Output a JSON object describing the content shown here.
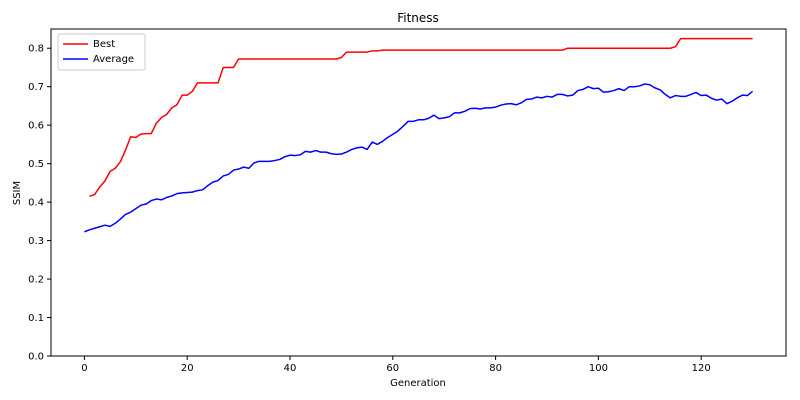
{
  "chart_data": {
    "type": "line",
    "title": "Fitness",
    "xlabel": "Generation",
    "ylabel": "SSIM",
    "xlim": [
      -6.5,
      136.5
    ],
    "ylim": [
      0.0,
      0.85
    ],
    "xticks": [
      0,
      20,
      40,
      60,
      80,
      100,
      120
    ],
    "yticks": [
      0.0,
      0.1,
      0.2,
      0.3,
      0.4,
      0.5,
      0.6,
      0.7,
      0.8
    ],
    "xtick_labels": [
      "0",
      "20",
      "40",
      "60",
      "80",
      "100",
      "120"
    ],
    "ytick_labels": [
      "0.0",
      "0.1",
      "0.2",
      "0.3",
      "0.4",
      "0.5",
      "0.6",
      "0.7",
      "0.8"
    ],
    "grid": false,
    "legend_position": "top-left",
    "series": [
      {
        "name": "Best",
        "color": "#ff0000",
        "points": [
          [
            1,
            0.415
          ],
          [
            2,
            0.42
          ],
          [
            3,
            0.44
          ],
          [
            4,
            0.455
          ],
          [
            5,
            0.48
          ],
          [
            6,
            0.488
          ],
          [
            7,
            0.505
          ],
          [
            8,
            0.535
          ],
          [
            9,
            0.57
          ],
          [
            10,
            0.568
          ],
          [
            11,
            0.577
          ],
          [
            12,
            0.578
          ],
          [
            13,
            0.578
          ],
          [
            14,
            0.605
          ],
          [
            15,
            0.62
          ],
          [
            16,
            0.628
          ],
          [
            17,
            0.645
          ],
          [
            18,
            0.653
          ],
          [
            19,
            0.678
          ],
          [
            20,
            0.678
          ],
          [
            21,
            0.688
          ],
          [
            22,
            0.71
          ],
          [
            23,
            0.71
          ],
          [
            24,
            0.71
          ],
          [
            25,
            0.71
          ],
          [
            26,
            0.71
          ],
          [
            27,
            0.75
          ],
          [
            28,
            0.75
          ],
          [
            29,
            0.75
          ],
          [
            30,
            0.772
          ],
          [
            35,
            0.772
          ],
          [
            40,
            0.772
          ],
          [
            45,
            0.772
          ],
          [
            49,
            0.772
          ],
          [
            50,
            0.776
          ],
          [
            51,
            0.79
          ],
          [
            55,
            0.79
          ],
          [
            56,
            0.793
          ],
          [
            57,
            0.793
          ],
          [
            58,
            0.795
          ],
          [
            93,
            0.795
          ],
          [
            94,
            0.8
          ],
          [
            114,
            0.8
          ],
          [
            115,
            0.804
          ],
          [
            116,
            0.825
          ],
          [
            130,
            0.825
          ]
        ]
      },
      {
        "name": "Average",
        "color": "#0000ff",
        "points": [
          [
            0,
            0.323
          ],
          [
            1,
            0.328
          ],
          [
            2,
            0.332
          ],
          [
            3,
            0.336
          ],
          [
            4,
            0.34
          ],
          [
            5,
            0.337
          ],
          [
            6,
            0.345
          ],
          [
            7,
            0.356
          ],
          [
            8,
            0.368
          ],
          [
            9,
            0.374
          ],
          [
            10,
            0.383
          ],
          [
            11,
            0.392
          ],
          [
            12,
            0.395
          ],
          [
            13,
            0.404
          ],
          [
            14,
            0.408
          ],
          [
            15,
            0.406
          ],
          [
            16,
            0.412
          ],
          [
            17,
            0.416
          ],
          [
            18,
            0.422
          ],
          [
            19,
            0.424
          ],
          [
            20,
            0.425
          ],
          [
            21,
            0.426
          ],
          [
            22,
            0.43
          ],
          [
            23,
            0.432
          ],
          [
            24,
            0.443
          ],
          [
            25,
            0.452
          ],
          [
            26,
            0.456
          ],
          [
            27,
            0.468
          ],
          [
            28,
            0.472
          ],
          [
            29,
            0.483
          ],
          [
            30,
            0.486
          ],
          [
            31,
            0.491
          ],
          [
            32,
            0.488
          ],
          [
            33,
            0.502
          ],
          [
            34,
            0.506
          ],
          [
            35,
            0.506
          ],
          [
            36,
            0.506
          ],
          [
            37,
            0.508
          ],
          [
            38,
            0.511
          ],
          [
            39,
            0.518
          ],
          [
            40,
            0.522
          ],
          [
            41,
            0.521
          ],
          [
            42,
            0.523
          ],
          [
            43,
            0.532
          ],
          [
            44,
            0.53
          ],
          [
            45,
            0.534
          ],
          [
            46,
            0.53
          ],
          [
            47,
            0.53
          ],
          [
            48,
            0.526
          ],
          [
            49,
            0.524
          ],
          [
            50,
            0.525
          ],
          [
            51,
            0.53
          ],
          [
            52,
            0.537
          ],
          [
            53,
            0.541
          ],
          [
            54,
            0.543
          ],
          [
            55,
            0.537
          ],
          [
            56,
            0.556
          ],
          [
            57,
            0.55
          ],
          [
            58,
            0.558
          ],
          [
            59,
            0.568
          ],
          [
            60,
            0.576
          ],
          [
            61,
            0.585
          ],
          [
            62,
            0.597
          ],
          [
            63,
            0.61
          ],
          [
            64,
            0.61
          ],
          [
            65,
            0.614
          ],
          [
            66,
            0.614
          ],
          [
            67,
            0.618
          ],
          [
            68,
            0.626
          ],
          [
            69,
            0.617
          ],
          [
            70,
            0.619
          ],
          [
            71,
            0.622
          ],
          [
            72,
            0.632
          ],
          [
            73,
            0.632
          ],
          [
            74,
            0.636
          ],
          [
            75,
            0.643
          ],
          [
            76,
            0.644
          ],
          [
            77,
            0.642
          ],
          [
            78,
            0.645
          ],
          [
            79,
            0.645
          ],
          [
            80,
            0.647
          ],
          [
            81,
            0.652
          ],
          [
            82,
            0.655
          ],
          [
            83,
            0.656
          ],
          [
            84,
            0.653
          ],
          [
            85,
            0.658
          ],
          [
            86,
            0.667
          ],
          [
            87,
            0.668
          ],
          [
            88,
            0.673
          ],
          [
            89,
            0.671
          ],
          [
            90,
            0.675
          ],
          [
            91,
            0.673
          ],
          [
            92,
            0.68
          ],
          [
            93,
            0.68
          ],
          [
            94,
            0.676
          ],
          [
            95,
            0.678
          ],
          [
            96,
            0.69
          ],
          [
            97,
            0.693
          ],
          [
            98,
            0.7
          ],
          [
            99,
            0.695
          ],
          [
            100,
            0.696
          ],
          [
            101,
            0.686
          ],
          [
            102,
            0.687
          ],
          [
            103,
            0.69
          ],
          [
            104,
            0.695
          ],
          [
            105,
            0.69
          ],
          [
            106,
            0.7
          ],
          [
            107,
            0.7
          ],
          [
            108,
            0.702
          ],
          [
            109,
            0.707
          ],
          [
            110,
            0.705
          ],
          [
            111,
            0.697
          ],
          [
            112,
            0.692
          ],
          [
            113,
            0.68
          ],
          [
            114,
            0.671
          ],
          [
            115,
            0.677
          ],
          [
            116,
            0.675
          ],
          [
            117,
            0.675
          ],
          [
            118,
            0.68
          ],
          [
            119,
            0.685
          ],
          [
            120,
            0.677
          ],
          [
            121,
            0.678
          ],
          [
            122,
            0.67
          ],
          [
            123,
            0.665
          ],
          [
            124,
            0.668
          ],
          [
            125,
            0.656
          ],
          [
            126,
            0.662
          ],
          [
            127,
            0.671
          ],
          [
            128,
            0.678
          ],
          [
            129,
            0.677
          ],
          [
            130,
            0.688
          ]
        ]
      }
    ]
  }
}
